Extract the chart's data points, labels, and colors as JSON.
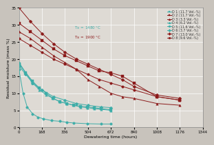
{
  "xlabel": "Dewatering time (hours)",
  "ylabel": "Residual moisture (mass %)",
  "xlim": [
    0,
    1344
  ],
  "ylim": [
    0,
    35
  ],
  "xticks": [
    0,
    168,
    336,
    504,
    672,
    840,
    1008,
    1176,
    1344
  ],
  "yticks": [
    0,
    5,
    10,
    15,
    20,
    25,
    30,
    35
  ],
  "annotation1": "T$_{Sl}$ = 1480 °C",
  "annotation2": "T$_{Sl}$ = 1900 °C",
  "series": [
    {
      "label": "D 1 (11.7 Vol.-%)",
      "color": "#3dada8",
      "marker": "s",
      "markersize": 2.5,
      "x": [
        0,
        50,
        100,
        150,
        200,
        250,
        300,
        350,
        400,
        450,
        500,
        550,
        600,
        672
      ],
      "y": [
        18.5,
        16,
        13.5,
        11.5,
        10,
        8.5,
        7.5,
        7,
        6.5,
        6.2,
        6.0,
        5.8,
        5.5,
        5.2
      ]
    },
    {
      "label": "D 2 (11.7 Vol.-%)",
      "color": "#8b1a1a",
      "marker": "s",
      "markersize": 2.5,
      "x": [
        0,
        84,
        168,
        252,
        336,
        420,
        504,
        588,
        672,
        756,
        840,
        1008,
        1176
      ],
      "y": [
        30.5,
        28,
        25.5,
        23,
        21,
        19.5,
        18,
        16.5,
        16,
        15,
        13,
        9,
        8
      ]
    },
    {
      "label": "D 3 (3.3 Vol.-%)",
      "color": "#8b1a1a",
      "marker": "^",
      "markersize": 2.5,
      "x": [
        0,
        84,
        168,
        252,
        336,
        420,
        504,
        588,
        672,
        756,
        840,
        1008,
        1176
      ],
      "y": [
        28,
        26,
        23.5,
        21,
        19,
        17,
        14,
        12,
        10,
        9,
        8.5,
        7,
        6.5
      ]
    },
    {
      "label": "D 4 (6.2 Vol.-%)",
      "color": "#3dada8",
      "marker": "^",
      "markersize": 2.5,
      "x": [
        0,
        50,
        100,
        150,
        200,
        250,
        300,
        350,
        400,
        450,
        500,
        550,
        600,
        672
      ],
      "y": [
        19,
        16,
        13,
        11,
        9.5,
        8.5,
        7.5,
        7,
        6.5,
        6,
        5.8,
        5.5,
        5.3,
        5.0
      ]
    },
    {
      "label": "D 5 (11.6 Vol.-%)",
      "color": "#3dada8",
      "marker": "o",
      "markersize": 2.5,
      "x": [
        0,
        30,
        60,
        100,
        140,
        180,
        240,
        300,
        350,
        400,
        500,
        600,
        672
      ],
      "y": [
        17,
        10,
        6,
        4,
        3,
        2.5,
        2,
        1.8,
        1.5,
        1.3,
        1.1,
        1.0,
        1.0
      ]
    },
    {
      "label": "D 6 (3.7 Vol.-%)",
      "color": "#3dada8",
      "marker": "D",
      "markersize": 2.5,
      "x": [
        0,
        50,
        100,
        168,
        252,
        336,
        420,
        504,
        600,
        672
      ],
      "y": [
        18,
        15.5,
        13,
        11,
        9,
        8,
        7,
        6.5,
        6,
        5.8
      ]
    },
    {
      "label": "D 7 (13.0 Vol.-%)",
      "color": "#8b1a1a",
      "marker": "D",
      "markersize": 2.5,
      "x": [
        0,
        84,
        168,
        252,
        336,
        420,
        504,
        588,
        672,
        756,
        840,
        1008,
        1176
      ],
      "y": [
        35,
        31,
        27.5,
        24.5,
        22,
        20,
        18.5,
        17,
        15.5,
        14,
        12,
        9.5,
        8.5
      ]
    },
    {
      "label": "D 8 (9.6 Vol.-%)",
      "color": "#8b1a1a",
      "marker": "o",
      "markersize": 2.5,
      "x": [
        0,
        84,
        168,
        252,
        336,
        420,
        504,
        588,
        672,
        756,
        840,
        1008,
        1176
      ],
      "y": [
        26,
        24,
        22,
        20,
        18.5,
        17,
        15.5,
        14,
        13,
        12,
        11,
        9,
        8
      ]
    }
  ],
  "bg_color": "#c8c3bc",
  "plot_bg_color": "#dedad4",
  "grid_color": "#ffffff",
  "font_size": 4.5,
  "legend_font_size": 3.5
}
